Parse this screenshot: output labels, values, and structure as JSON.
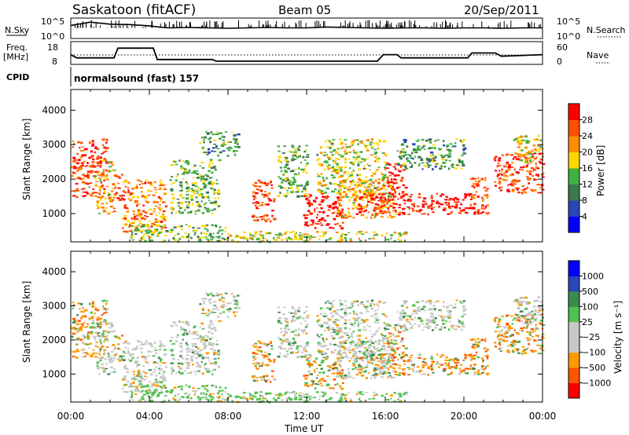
{
  "header": {
    "station": "Saskatoon (fitACF)",
    "beam": "Beam 05",
    "date": "20/Sep/2011"
  },
  "left_labels": {
    "nsky": "N.Sky",
    "freq_line1": "Freq.",
    "freq_line2": "[MHz]",
    "cpid": "CPID"
  },
  "right_labels": {
    "nsearch": "N.Search",
    "nave": "Nave"
  },
  "cpid_text": "normalsound (fast) 157",
  "time_axis": {
    "label": "Time UT",
    "ticks": [
      "00:00",
      "04:00",
      "08:00",
      "12:00",
      "16:00",
      "20:00",
      "00:00"
    ]
  },
  "colors": {
    "power_scale": [
      "#0000ff",
      "#2a46b8",
      "#3c7a4c",
      "#40b040",
      "#ffd700",
      "#ff8c00",
      "#ff5000",
      "#ff0000"
    ],
    "velocity_scale": [
      "#ff0000",
      "#ff5500",
      "#ff9900",
      "#c8c8c8",
      "#c8c8c8",
      "#50c050",
      "#3c8a50",
      "#2a46b8",
      "#0000ff"
    ],
    "ground_scatter": "#c8c8c8"
  },
  "chart_data": [
    {
      "type": "line",
      "name_text": "N.Sky",
      "y_ticks": [
        "10^5",
        "10^0"
      ],
      "right_ticks": [
        "10^5",
        "10^0"
      ],
      "x_range_hours": [
        0,
        24
      ],
      "series": [
        {
          "x": [
            0,
            0.5,
            1,
            2,
            3,
            4,
            4.5,
            5,
            6,
            7,
            8,
            9,
            10,
            11,
            12,
            13,
            14,
            15,
            16,
            17,
            18,
            19,
            20,
            21,
            22,
            23,
            24
          ],
          "y": [
            3.2,
            3.6,
            4.0,
            3.5,
            3.4,
            3.1,
            2.8,
            2.6,
            2.7,
            2.6,
            2.5,
            2.6,
            2.7,
            2.6,
            2.6,
            2.8,
            2.7,
            2.6,
            2.5,
            2.6,
            2.6,
            2.5,
            2.6,
            2.6,
            2.5,
            2.6,
            2.6
          ]
        }
      ]
    },
    {
      "type": "line",
      "left_ticks": [
        "18",
        "8"
      ],
      "right_ticks": [
        "60",
        "0"
      ],
      "x_range_hours": [
        0,
        24
      ],
      "series": [
        {
          "x": [
            0,
            0.3,
            2.2,
            2.4,
            4.2,
            4.4,
            7.2,
            7.4,
            15.6,
            15.9,
            16.6,
            16.8,
            20.2,
            20.4,
            21.6,
            21.9,
            24
          ],
          "y": [
            12,
            10,
            10,
            16,
            16,
            9,
            9,
            8,
            8,
            12,
            12,
            10,
            10,
            13,
            13,
            11,
            12
          ]
        }
      ]
    },
    {
      "type": "heatmap",
      "ylabel": "Slant Range [km]",
      "y_ticks": [
        1000,
        2000,
        3000,
        4000
      ],
      "ylim": [
        180,
        4600
      ],
      "x_range_hours": [
        0,
        24
      ],
      "colorbar": {
        "label": "Power [dB]",
        "ticks": [
          "4",
          "8",
          "12",
          "16",
          "20",
          "24",
          "28"
        ]
      }
    },
    {
      "type": "heatmap",
      "ylabel": "Slant Range [km]",
      "y_ticks": [
        1000,
        2000,
        3000,
        4000
      ],
      "ylim": [
        180,
        4600
      ],
      "x_range_hours": [
        0,
        24
      ],
      "colorbar": {
        "label": "Velocity [m s⁻¹]",
        "ticks": [
          "1000",
          "500",
          "100",
          "25",
          "−25",
          "−100",
          "−500",
          "−1000"
        ]
      }
    }
  ]
}
